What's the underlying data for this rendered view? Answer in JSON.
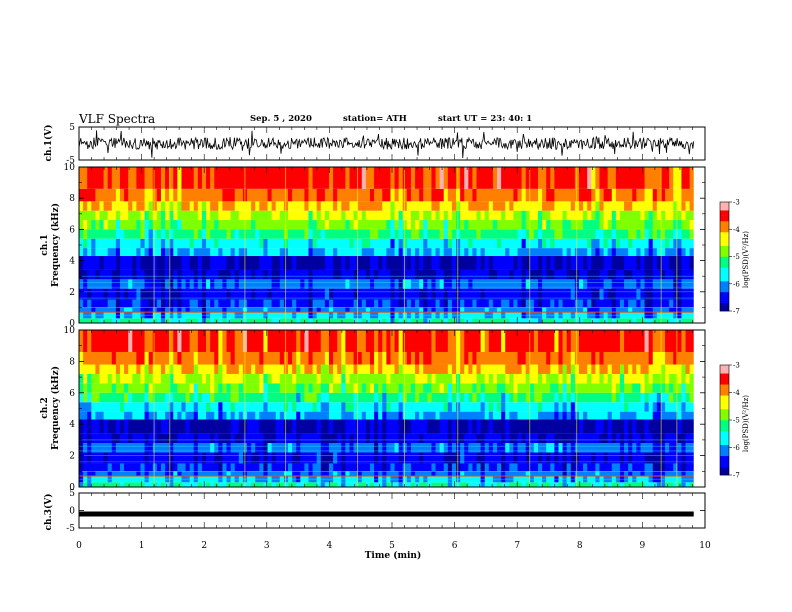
{
  "header": {
    "title": "VLF Spectra",
    "date": "Sep. 5 , 2020",
    "station": "station= ATH",
    "start": "start UT = 23: 40: 1"
  },
  "axes": {
    "ch1_voltage_label": "ch.1(V)",
    "ch3_voltage_label": "ch.3(V)",
    "ch1_freq_label": "ch.1",
    "ch2_freq_label": "ch.2",
    "freq_label": "Frequency (kHz)",
    "time_label": "Time (min)",
    "colorbar_label": "log(PSD)(V²/Hz)"
  },
  "colors": {
    "scale": [
      "#0000a0",
      "#0000ff",
      "#0080ff",
      "#00ffff",
      "#00ff80",
      "#80ff00",
      "#ffff00",
      "#ff8000",
      "#ff0000",
      "#ffb0b0"
    ]
  },
  "chart_data": [
    {
      "type": "line",
      "panel": "ch.1 voltage",
      "ylabel": "ch.1(V)",
      "xlim": [
        0,
        10
      ],
      "ylim": [
        -5,
        5
      ],
      "yticks": [
        5,
        -5
      ],
      "data_end_min": 9.82,
      "series": [
        {
          "values_range": [
            -2,
            2
          ]
        }
      ]
    },
    {
      "type": "heatmap",
      "panel": "ch.1 spectrogram",
      "ylabel": "Frequency (kHz)",
      "xlim": [
        0,
        10
      ],
      "ylim": [
        0,
        10
      ],
      "yticks": [
        0,
        2,
        4,
        6,
        8,
        10
      ],
      "data_end_min": 9.82,
      "colorbar": {
        "label": "log(PSD)(V²/Hz)",
        "range": [
          -7,
          -3
        ],
        "ticks": [
          -3,
          -4,
          -5,
          -6,
          -7
        ]
      }
    },
    {
      "type": "heatmap",
      "panel": "ch.2 spectrogram",
      "ylabel": "Frequency (kHz)",
      "xlim": [
        0,
        10
      ],
      "ylim": [
        0,
        10
      ],
      "yticks": [
        0,
        2,
        4,
        6,
        8,
        10
      ],
      "data_end_min": 9.82,
      "colorbar": {
        "label": "log(PSD)(V²/Hz)",
        "range": [
          -7,
          -3
        ],
        "ticks": [
          -3,
          -4,
          -5,
          -6,
          -7
        ]
      }
    },
    {
      "type": "line",
      "panel": "ch.3 voltage",
      "ylabel": "ch.3(V)",
      "xlim": [
        0,
        10
      ],
      "ylim": [
        -5,
        5
      ],
      "yticks": [
        5,
        0,
        -5
      ],
      "data_end_min": 9.82,
      "series": [
        {
          "values": [
            -1,
            -1
          ]
        }
      ]
    }
  ],
  "x_axis": {
    "label": "Time (min)",
    "ticks": [
      0,
      1,
      2,
      3,
      4,
      5,
      6,
      7,
      8,
      9,
      10
    ]
  }
}
